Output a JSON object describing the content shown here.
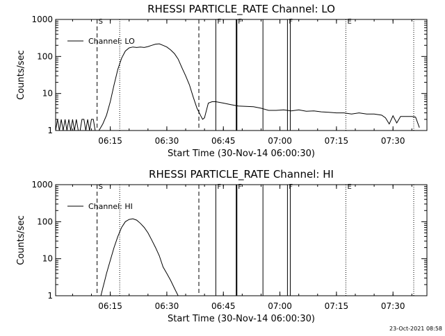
{
  "footer": {
    "timestamp": "23-Oct-2021 08:58"
  },
  "chart_data": [
    {
      "type": "line",
      "title": "RHESSI PARTICLE_RATE Channel: LO",
      "xlabel": "Start Time (30-Nov-14 06:00:30)",
      "ylabel": "Counts/sec",
      "yscale": "log",
      "ylim": [
        1,
        1000
      ],
      "xlim": [
        "06:00:30",
        "07:39:00"
      ],
      "x_ticks": [
        "06:15",
        "06:30",
        "06:45",
        "07:00",
        "07:15",
        "07:30"
      ],
      "y_ticks": [
        "1",
        "10",
        "100",
        "1000"
      ],
      "legend": {
        "entries": [
          "Channel: LO"
        ],
        "placement": "top-left"
      },
      "series": [
        {
          "name": "Channel: LO",
          "x": [
            "06:00:30",
            "06:01:00",
            "06:01:30",
            "06:02:00",
            "06:02:30",
            "06:03:00",
            "06:03:30",
            "06:04:00",
            "06:04:30",
            "06:05:00",
            "06:05:30",
            "06:06:00",
            "06:06:30",
            "06:07:00",
            "06:07:30",
            "06:08:00",
            "06:08:30",
            "06:09:00",
            "06:09:30",
            "06:10:00",
            "06:10:30",
            "06:11:00",
            "06:11:30",
            "06:12:00",
            "06:13:00",
            "06:14:00",
            "06:15:00",
            "06:16:00",
            "06:17:00",
            "06:18:00",
            "06:19:00",
            "06:20:00",
            "06:21:00",
            "06:22:00",
            "06:23:00",
            "06:24:00",
            "06:25:00",
            "06:26:00",
            "06:27:00",
            "06:28:00",
            "06:29:00",
            "06:30:00",
            "06:31:00",
            "06:32:00",
            "06:33:00",
            "06:34:00",
            "06:35:00",
            "06:36:00",
            "06:37:00",
            "06:38:00",
            "06:39:00",
            "06:39:30",
            "06:40:00",
            "06:41:00",
            "06:42:00",
            "06:43:00",
            "06:45:00",
            "06:47:00",
            "06:49:00",
            "06:51:00",
            "06:53:00",
            "06:55:00",
            "06:57:00",
            "06:59:00",
            "07:01:00",
            "07:03:00",
            "07:05:00",
            "07:07:00",
            "07:09:00",
            "07:11:00",
            "07:13:00",
            "07:15:00",
            "07:17:00",
            "07:19:00",
            "07:21:00",
            "07:23:00",
            "07:25:00",
            "07:27:00",
            "07:28:00",
            "07:29:00",
            "07:30:00",
            "07:31:00",
            "07:32:00",
            "07:33:00",
            "07:34:00",
            "07:35:00",
            "07:36:00",
            "07:37:00"
          ],
          "y": [
            1,
            2,
            1,
            2,
            1,
            2,
            1,
            2,
            1,
            2,
            1,
            2,
            1,
            1,
            2,
            2,
            1,
            2,
            1,
            2,
            2,
            1,
            1,
            1,
            1.5,
            2.6,
            6,
            17,
            45,
            90,
            140,
            170,
            180,
            175,
            180,
            175,
            185,
            200,
            215,
            220,
            200,
            180,
            150,
            120,
            85,
            50,
            30,
            17,
            8,
            4,
            2.5,
            2,
            2.2,
            5.5,
            6,
            6,
            5.5,
            5,
            4.6,
            4.5,
            4.4,
            4,
            3.5,
            3.5,
            3.6,
            3.4,
            3.6,
            3.3,
            3.4,
            3.2,
            3.1,
            3,
            3,
            2.8,
            3,
            2.8,
            2.8,
            2.6,
            2.2,
            1.5,
            2.5,
            1.6,
            2.4,
            2.4,
            2.4,
            2.4,
            2.3,
            1.2
          ]
        }
      ],
      "vertical_markers": [
        {
          "time": "06:11:30",
          "style": "dashed",
          "label": "S"
        },
        {
          "time": "06:17:30",
          "style": "dotted",
          "label": ""
        },
        {
          "time": "06:38:30",
          "style": "dashed",
          "label": ""
        },
        {
          "time": "06:43:00",
          "style": "solid",
          "label": "F"
        },
        {
          "time": "06:48:30",
          "style": "solid-bold",
          "label": "F"
        },
        {
          "time": "06:55:30",
          "style": "solid",
          "label": ""
        },
        {
          "time": "07:02:00",
          "style": "solid",
          "label": "F"
        },
        {
          "time": "07:02:45",
          "style": "solid",
          "label": ""
        },
        {
          "time": "07:17:30",
          "style": "dotted",
          "label": "E"
        },
        {
          "time": "07:35:30",
          "style": "dotted",
          "label": ""
        }
      ]
    },
    {
      "type": "line",
      "title": "RHESSI PARTICLE_RATE Channel: HI",
      "xlabel": "Start Time (30-Nov-14 06:00:30)",
      "ylabel": "Counts/sec",
      "yscale": "log",
      "ylim": [
        1,
        1000
      ],
      "xlim": [
        "06:00:30",
        "07:39:00"
      ],
      "x_ticks": [
        "06:15",
        "06:30",
        "06:45",
        "07:00",
        "07:15",
        "07:30"
      ],
      "y_ticks": [
        "1",
        "10",
        "100",
        "1000"
      ],
      "legend": {
        "entries": [
          "Channel: HI"
        ],
        "placement": "top-left"
      },
      "series": [
        {
          "name": "Channel: HI",
          "x": [
            "06:12:30",
            "06:13:00",
            "06:13:30",
            "06:14:00",
            "06:14:30",
            "06:15:00",
            "06:16:00",
            "06:17:00",
            "06:18:00",
            "06:19:00",
            "06:20:00",
            "06:21:00",
            "06:22:00",
            "06:23:00",
            "06:24:00",
            "06:25:00",
            "06:26:00",
            "06:27:00",
            "06:28:00",
            "06:29:00",
            "06:30:00",
            "06:31:00",
            "06:32:00",
            "06:33:00"
          ],
          "y": [
            1,
            1.6,
            2.5,
            4,
            6,
            9,
            20,
            40,
            70,
            100,
            115,
            120,
            110,
            90,
            70,
            50,
            32,
            20,
            12,
            6,
            4,
            2.6,
            1.6,
            1
          ]
        }
      ],
      "vertical_markers": [
        {
          "time": "06:11:30",
          "style": "dashed",
          "label": "S"
        },
        {
          "time": "06:17:30",
          "style": "dotted",
          "label": ""
        },
        {
          "time": "06:38:30",
          "style": "dashed",
          "label": ""
        },
        {
          "time": "06:43:00",
          "style": "solid",
          "label": "F"
        },
        {
          "time": "06:48:30",
          "style": "solid-bold",
          "label": "F"
        },
        {
          "time": "06:55:30",
          "style": "solid",
          "label": ""
        },
        {
          "time": "07:02:00",
          "style": "solid",
          "label": "F"
        },
        {
          "time": "07:02:45",
          "style": "solid",
          "label": ""
        },
        {
          "time": "07:17:30",
          "style": "dotted",
          "label": "E"
        },
        {
          "time": "07:35:30",
          "style": "dotted",
          "label": ""
        }
      ]
    }
  ]
}
